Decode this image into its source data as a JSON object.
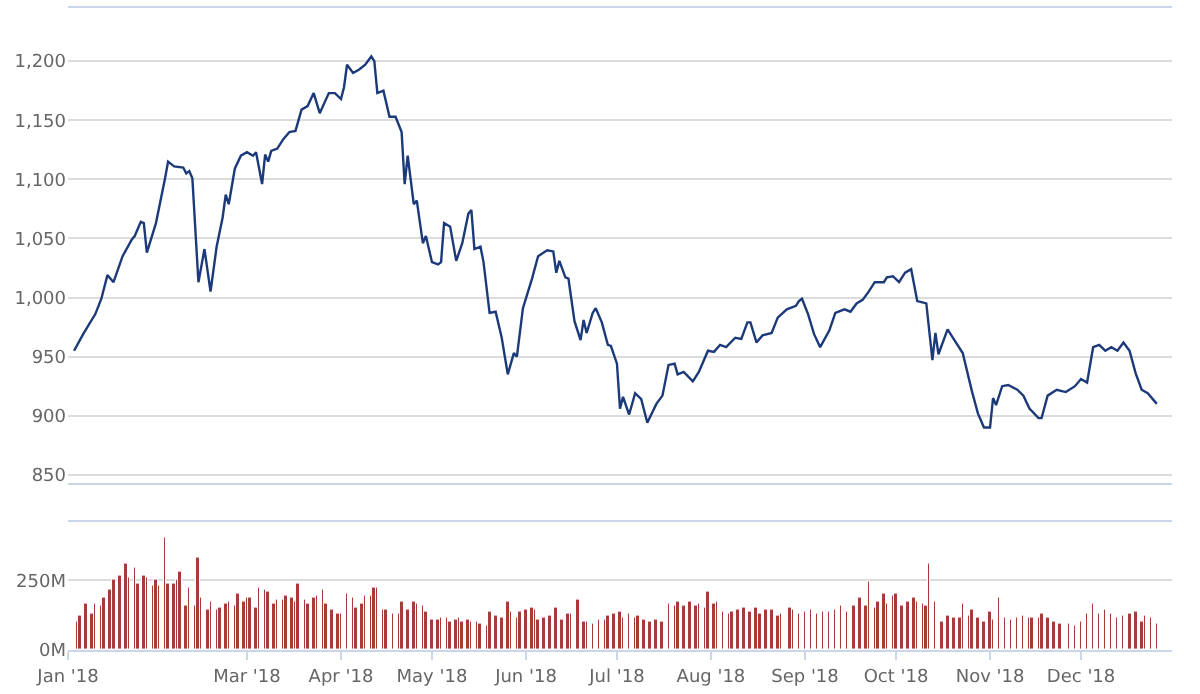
{
  "chart_data": [
    {
      "type": "line",
      "xlim": [
        "2018-01-01",
        "2018-12-31"
      ],
      "ylim": [
        843,
        1245
      ],
      "yticks": [
        {
          "value": 850,
          "label": "850"
        },
        {
          "value": 900,
          "label": "900"
        },
        {
          "value": 950,
          "label": "950"
        },
        {
          "value": 1000,
          "label": "1,000"
        },
        {
          "value": 1050,
          "label": "1,050"
        },
        {
          "value": 1100,
          "label": "1,100"
        },
        {
          "value": 1150,
          "label": "1,150"
        },
        {
          "value": 1200,
          "label": "1,200"
        }
      ],
      "grid": "y",
      "tick_labels": "y",
      "series": [
        {
          "color": "#1c3a7a",
          "x": [
            "2018-01-03",
            "2018-01-06",
            "2018-01-10",
            "2018-01-12",
            "2018-01-14",
            "2018-01-16",
            "2018-01-19",
            "2018-01-22",
            "2018-01-23",
            "2018-01-25",
            "2018-01-26",
            "2018-01-27",
            "2018-01-30",
            "2018-02-02",
            "2018-02-03",
            "2018-02-05",
            "2018-02-08",
            "2018-02-09",
            "2018-02-10",
            "2018-02-11",
            "2018-02-13",
            "2018-02-15",
            "2018-02-17",
            "2018-02-19",
            "2018-02-21",
            "2018-02-22",
            "2018-02-23",
            "2018-02-25",
            "2018-02-27",
            "2018-03-01",
            "2018-03-03",
            "2018-03-04",
            "2018-03-06",
            "2018-03-07",
            "2018-03-08",
            "2018-03-09",
            "2018-03-11",
            "2018-03-13",
            "2018-03-15",
            "2018-03-17",
            "2018-03-19",
            "2018-03-21",
            "2018-03-23",
            "2018-03-25",
            "2018-03-28",
            "2018-03-30",
            "2018-04-01",
            "2018-04-02",
            "2018-04-03",
            "2018-04-05",
            "2018-04-07",
            "2018-04-09",
            "2018-04-11",
            "2018-04-12",
            "2018-04-13",
            "2018-04-15",
            "2018-04-17",
            "2018-04-19",
            "2018-04-21",
            "2018-04-22",
            "2018-04-23",
            "2018-04-25",
            "2018-04-26",
            "2018-04-28",
            "2018-04-29",
            "2018-05-01",
            "2018-05-03",
            "2018-05-04",
            "2018-05-05",
            "2018-05-07",
            "2018-05-09",
            "2018-05-11",
            "2018-05-13",
            "2018-05-14",
            "2018-05-15",
            "2018-05-17",
            "2018-05-18",
            "2018-05-20",
            "2018-05-22",
            "2018-05-24",
            "2018-05-26",
            "2018-05-28",
            "2018-05-29",
            "2018-05-31",
            "2018-06-03",
            "2018-06-05",
            "2018-06-08",
            "2018-06-10",
            "2018-06-11",
            "2018-06-12",
            "2018-06-14",
            "2018-06-15",
            "2018-06-17",
            "2018-06-19",
            "2018-06-20",
            "2018-06-21",
            "2018-06-23",
            "2018-06-24",
            "2018-06-26",
            "2018-06-28",
            "2018-06-29",
            "2018-07-01",
            "2018-07-02",
            "2018-07-03",
            "2018-07-05",
            "2018-07-07",
            "2018-07-09",
            "2018-07-11",
            "2018-07-14",
            "2018-07-16",
            "2018-07-18",
            "2018-07-20",
            "2018-07-21",
            "2018-07-23",
            "2018-07-26",
            "2018-07-28",
            "2018-07-31",
            "2018-08-02",
            "2018-08-04",
            "2018-08-06",
            "2018-08-09",
            "2018-08-11",
            "2018-08-13",
            "2018-08-14",
            "2018-08-16",
            "2018-08-18",
            "2018-08-21",
            "2018-08-23",
            "2018-08-26",
            "2018-08-29",
            "2018-08-30",
            "2018-08-31",
            "2018-09-02",
            "2018-09-04",
            "2018-09-06",
            "2018-09-09",
            "2018-09-11",
            "2018-09-14",
            "2018-09-16",
            "2018-09-18",
            "2018-09-20",
            "2018-09-22",
            "2018-09-24",
            "2018-09-27",
            "2018-09-28",
            "2018-09-30",
            "2018-10-02",
            "2018-10-04",
            "2018-10-06",
            "2018-10-08",
            "2018-10-11",
            "2018-10-13",
            "2018-10-14",
            "2018-10-15",
            "2018-10-18",
            "2018-10-21",
            "2018-10-23",
            "2018-10-26",
            "2018-10-28",
            "2018-10-30",
            "2018-11-01",
            "2018-11-02",
            "2018-11-03",
            "2018-11-05",
            "2018-11-07",
            "2018-11-10",
            "2018-11-12",
            "2018-11-14",
            "2018-11-17",
            "2018-11-18",
            "2018-11-20",
            "2018-11-23",
            "2018-11-26",
            "2018-11-29",
            "2018-12-01",
            "2018-12-03",
            "2018-12-05",
            "2018-12-07",
            "2018-12-09",
            "2018-12-11",
            "2018-12-13",
            "2018-12-15",
            "2018-12-17",
            "2018-12-19",
            "2018-12-21",
            "2018-12-23",
            "2018-12-26"
          ],
          "values": [
            955,
            969,
            986,
            999,
            1019,
            1013,
            1035,
            1049,
            1052,
            1064,
            1063,
            1038,
            1063,
            1101,
            1115,
            1111,
            1110,
            1105,
            1107,
            1101,
            1013,
            1041,
            1005,
            1043,
            1068,
            1087,
            1079,
            1109,
            1120,
            1123,
            1120,
            1123,
            1096,
            1121,
            1115,
            1124,
            1126,
            1134,
            1140,
            1141,
            1159,
            1162,
            1173,
            1156,
            1173,
            1173,
            1168,
            1178,
            1197,
            1190,
            1193,
            1197,
            1204,
            1200,
            1173,
            1175,
            1153,
            1153,
            1140,
            1096,
            1120,
            1079,
            1082,
            1046,
            1052,
            1030,
            1028,
            1030,
            1063,
            1060,
            1031,
            1046,
            1071,
            1074,
            1041,
            1043,
            1030,
            987,
            988,
            966,
            935,
            953,
            950,
            991,
            1016,
            1035,
            1040,
            1039,
            1021,
            1031,
            1017,
            1016,
            980,
            964,
            981,
            970,
            987,
            991,
            979,
            960,
            959,
            944,
            906,
            916,
            901,
            919,
            914,
            894,
            910,
            917,
            943,
            944,
            935,
            937,
            929,
            937,
            955,
            954,
            960,
            958,
            966,
            965,
            979,
            979,
            962,
            968,
            970,
            983,
            990,
            993,
            997,
            999,
            986,
            969,
            958,
            972,
            987,
            990,
            988,
            995,
            998,
            1005,
            1013,
            1013,
            1017,
            1018,
            1013,
            1021,
            1024,
            997,
            995,
            947,
            970,
            952,
            973,
            961,
            953,
            921,
            902,
            890,
            890,
            915,
            909,
            925,
            926,
            922,
            917,
            906,
            898,
            898,
            917,
            922,
            920,
            925,
            931,
            928,
            958,
            960,
            955,
            958,
            955,
            962,
            955,
            936,
            922,
            919,
            910
          ]
        }
      ]
    },
    {
      "type": "bar",
      "xlim": [
        "2018-01-01",
        "2018-12-31"
      ],
      "ylim": [
        0,
        460
      ],
      "yticks": [
        {
          "value": 0,
          "label": "0M"
        },
        {
          "value": 250,
          "label": "250M"
        }
      ],
      "grid": "y",
      "xticks": [
        {
          "value": "2018-01-01",
          "label": "Jan '18"
        },
        {
          "value": "2018-03-01",
          "label": "Mar '18"
        },
        {
          "value": "2018-04-01",
          "label": "Apr '18"
        },
        {
          "value": "2018-05-01",
          "label": "May '18"
        },
        {
          "value": "2018-06-01",
          "label": "Jun '18"
        },
        {
          "value": "2018-07-01",
          "label": "Jul '18"
        },
        {
          "value": "2018-08-01",
          "label": "Aug '18"
        },
        {
          "value": "2018-09-01",
          "label": "Sep '18"
        },
        {
          "value": "2018-10-01",
          "label": "Oct '18"
        },
        {
          "value": "2018-11-01",
          "label": "Nov '18"
        },
        {
          "value": "2018-12-01",
          "label": "Dec '18"
        }
      ],
      "series": [
        {
          "color": "#a83a3a",
          "x": [
            "2018-01-04",
            "2018-01-05",
            "2018-01-07",
            "2018-01-09",
            "2018-01-10",
            "2018-01-12",
            "2018-01-13",
            "2018-01-15",
            "2018-01-16",
            "2018-01-18",
            "2018-01-20",
            "2018-01-21",
            "2018-01-23",
            "2018-01-24",
            "2018-01-26",
            "2018-01-27",
            "2018-01-29",
            "2018-01-30",
            "2018-01-31",
            "2018-02-02",
            "2018-02-03",
            "2018-02-05",
            "2018-02-06",
            "2018-02-07",
            "2018-02-09",
            "2018-02-10",
            "2018-02-12",
            "2018-02-13",
            "2018-02-14",
            "2018-02-16",
            "2018-02-17",
            "2018-02-19",
            "2018-02-20",
            "2018-02-22",
            "2018-02-23",
            "2018-02-25",
            "2018-02-26",
            "2018-02-28",
            "2018-03-01",
            "2018-03-02",
            "2018-03-04",
            "2018-03-05",
            "2018-03-07",
            "2018-03-08",
            "2018-03-10",
            "2018-03-11",
            "2018-03-13",
            "2018-03-14",
            "2018-03-16",
            "2018-03-17",
            "2018-03-18",
            "2018-03-20",
            "2018-03-21",
            "2018-03-23",
            "2018-03-24",
            "2018-03-26",
            "2018-03-27",
            "2018-03-29",
            "2018-03-31",
            "2018-04-01",
            "2018-04-03",
            "2018-04-05",
            "2018-04-06",
            "2018-04-08",
            "2018-04-09",
            "2018-04-11",
            "2018-04-12",
            "2018-04-13",
            "2018-04-15",
            "2018-04-16",
            "2018-04-18",
            "2018-04-20",
            "2018-04-21",
            "2018-04-23",
            "2018-04-25",
            "2018-04-26",
            "2018-04-28",
            "2018-04-29",
            "2018-05-01",
            "2018-05-03",
            "2018-05-04",
            "2018-05-06",
            "2018-05-07",
            "2018-05-09",
            "2018-05-10",
            "2018-05-11",
            "2018-05-13",
            "2018-05-14",
            "2018-05-16",
            "2018-05-17",
            "2018-05-19",
            "2018-05-20",
            "2018-05-22",
            "2018-05-24",
            "2018-05-26",
            "2018-05-27",
            "2018-05-29",
            "2018-05-30",
            "2018-06-01",
            "2018-06-03",
            "2018-06-04",
            "2018-06-05",
            "2018-06-07",
            "2018-06-09",
            "2018-06-11",
            "2018-06-13",
            "2018-06-15",
            "2018-06-16",
            "2018-06-18",
            "2018-06-20",
            "2018-06-21",
            "2018-06-23",
            "2018-06-25",
            "2018-06-27",
            "2018-06-28",
            "2018-06-30",
            "2018-07-02",
            "2018-07-03",
            "2018-07-05",
            "2018-07-07",
            "2018-07-08",
            "2018-07-10",
            "2018-07-12",
            "2018-07-14",
            "2018-07-16",
            "2018-07-18",
            "2018-07-20",
            "2018-07-21",
            "2018-07-23",
            "2018-07-25",
            "2018-07-27",
            "2018-07-28",
            "2018-07-30",
            "2018-07-31",
            "2018-08-02",
            "2018-08-03",
            "2018-08-05",
            "2018-08-07",
            "2018-08-08",
            "2018-08-10",
            "2018-08-12",
            "2018-08-14",
            "2018-08-16",
            "2018-08-17",
            "2018-08-19",
            "2018-08-21",
            "2018-08-23",
            "2018-08-24",
            "2018-08-27",
            "2018-08-28",
            "2018-08-30",
            "2018-09-01",
            "2018-09-03",
            "2018-09-05",
            "2018-09-07",
            "2018-09-09",
            "2018-09-11",
            "2018-09-13",
            "2018-09-15",
            "2018-09-17",
            "2018-09-19",
            "2018-09-21",
            "2018-09-22",
            "2018-09-24",
            "2018-09-25",
            "2018-09-27",
            "2018-09-28",
            "2018-09-30",
            "2018-10-01",
            "2018-10-03",
            "2018-10-05",
            "2018-10-07",
            "2018-10-08",
            "2018-10-10",
            "2018-10-11",
            "2018-10-12",
            "2018-10-14",
            "2018-10-16",
            "2018-10-18",
            "2018-10-20",
            "2018-10-22",
            "2018-10-23",
            "2018-10-25",
            "2018-10-26",
            "2018-10-28",
            "2018-10-30",
            "2018-11-01",
            "2018-11-02",
            "2018-11-04",
            "2018-11-06",
            "2018-11-08",
            "2018-11-10",
            "2018-11-12",
            "2018-11-14",
            "2018-11-15",
            "2018-11-17",
            "2018-11-18",
            "2018-11-20",
            "2018-11-22",
            "2018-11-24",
            "2018-11-27",
            "2018-11-29",
            "2018-12-01",
            "2018-12-03",
            "2018-12-05",
            "2018-12-07",
            "2018-12-09",
            "2018-12-11",
            "2018-12-13",
            "2018-12-15",
            "2018-12-17",
            "2018-12-19",
            "2018-12-21",
            "2018-12-22",
            "2018-12-24",
            "2018-12-26"
          ],
          "values": [
            104,
            122,
            163,
            129,
            163,
            158,
            187,
            219,
            255,
            267,
            309,
            260,
            292,
            236,
            267,
            260,
            231,
            250,
            231,
            406,
            236,
            236,
            255,
            284,
            158,
            226,
            158,
            328,
            187,
            146,
            177,
            146,
            151,
            163,
            170,
            158,
            202,
            170,
            187,
            187,
            153,
            226,
            219,
            211,
            163,
            182,
            182,
            194,
            187,
            177,
            236,
            182,
            163,
            187,
            194,
            219,
            163,
            146,
            134,
            134,
            199,
            187,
            153,
            163,
            194,
            194,
            226,
            226,
            146,
            146,
            129,
            134,
            170,
            146,
            177,
            163,
            158,
            139,
            109,
            109,
            114,
            114,
            104,
            109,
            114,
            104,
            109,
            104,
            102,
            97,
            85,
            139,
            122,
            114,
            170,
            139,
            114,
            139,
            146,
            153,
            146,
            109,
            114,
            122,
            153,
            109,
            129,
            134,
            182,
            104,
            104,
            97,
            109,
            109,
            122,
            129,
            139,
            114,
            129,
            114,
            122,
            109,
            104,
            109,
            104,
            163,
            158,
            170,
            158,
            177,
            158,
            163,
            153,
            207,
            163,
            170,
            139,
            129,
            139,
            146,
            153,
            139,
            153,
            129,
            146,
            146,
            122,
            129,
            153,
            146,
            134,
            139,
            146,
            129,
            139,
            139,
            146,
            158,
            139,
            158,
            187,
            158,
            248,
            153,
            177,
            202,
            163,
            194,
            202,
            158,
            170,
            187,
            170,
            163,
            158,
            311,
            177,
            104,
            122,
            114,
            114,
            165,
            122,
            146,
            114,
            104,
            139,
            109,
            187,
            114,
            109,
            114,
            122,
            114,
            114,
            114,
            129,
            114,
            104,
            97,
            97,
            90,
            104,
            129,
            163,
            134,
            142,
            134,
            114,
            122,
            129,
            139,
            104,
            122,
            114,
            97
          ]
        }
      ]
    }
  ]
}
